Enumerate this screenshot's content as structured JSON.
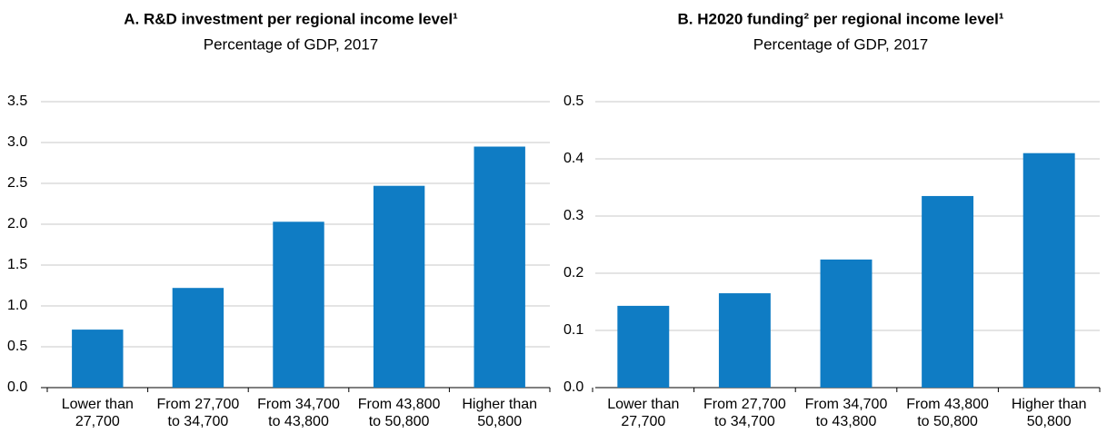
{
  "chart_data": [
    {
      "type": "bar",
      "title": "A. R&D investment per regional income level¹",
      "subtitle": "Percentage of GDP, 2017",
      "categories": [
        "Lower than\n27,700",
        "From 27,700\nto 34,700",
        "From 34,700\nto 43,800",
        "From 43,800\nto 50,800",
        "Higher than\n50,800"
      ],
      "values": [
        0.71,
        1.22,
        2.03,
        2.47,
        2.95
      ],
      "color": "#0f7cc4",
      "ylim": [
        0,
        3.5
      ],
      "yticks": [
        {
          "value": 0,
          "label": "0.0"
        },
        {
          "value": 0.5,
          "label": "0.5"
        },
        {
          "value": 1,
          "label": "1.0"
        },
        {
          "value": 1.5,
          "label": "1.5"
        },
        {
          "value": 2,
          "label": "2.0"
        },
        {
          "value": 2.5,
          "label": "2.5"
        },
        {
          "value": 3,
          "label": "3.0"
        },
        {
          "value": 3.5,
          "label": "3.5"
        }
      ],
      "grid": true
    },
    {
      "type": "bar",
      "title": "B. H2020 funding² per regional income level¹",
      "subtitle": "Percentage of GDP, 2017",
      "categories": [
        "Lower than\n27,700",
        "From 27,700\nto 34,700",
        "From 34,700\nto 43,800",
        "From 43,800\nto 50,800",
        "Higher than\n50,800"
      ],
      "values": [
        0.143,
        0.165,
        0.224,
        0.335,
        0.41
      ],
      "color": "#0f7cc4",
      "ylim": [
        0,
        0.5
      ],
      "yticks": [
        {
          "value": 0,
          "label": "0.0"
        },
        {
          "value": 0.1,
          "label": "0.1"
        },
        {
          "value": 0.2,
          "label": "0.2"
        },
        {
          "value": 0.3,
          "label": "0.3"
        },
        {
          "value": 0.4,
          "label": "0.4"
        },
        {
          "value": 0.5,
          "label": "0.5"
        }
      ],
      "grid": true
    }
  ]
}
